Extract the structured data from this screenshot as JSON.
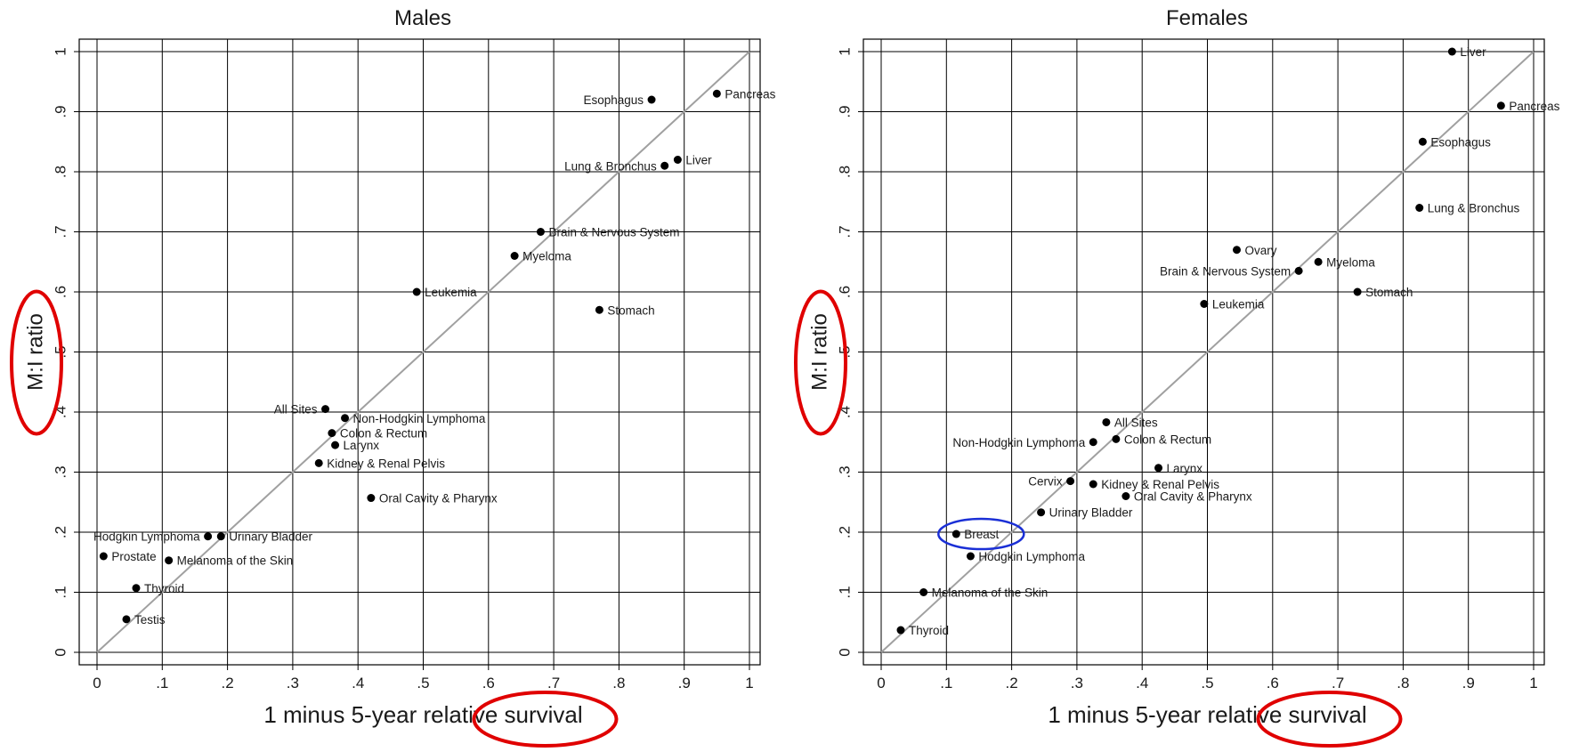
{
  "chart_data": [
    {
      "type": "scatter",
      "title": "Males",
      "xlabel": "1 minus 5-year relative survival",
      "ylabel": "M:I ratio",
      "xlim": [
        0,
        1
      ],
      "ylim": [
        0,
        1
      ],
      "grid": true,
      "reference_line": "y = x",
      "x_ticks": [
        {
          "value": 0,
          "label": "0"
        },
        {
          "value": 0.1,
          "label": ".1"
        },
        {
          "value": 0.2,
          "label": ".2"
        },
        {
          "value": 0.3,
          "label": ".3"
        },
        {
          "value": 0.4,
          "label": ".4"
        },
        {
          "value": 0.5,
          "label": ".5"
        },
        {
          "value": 0.6,
          "label": ".6"
        },
        {
          "value": 0.7,
          "label": ".7"
        },
        {
          "value": 0.8,
          "label": ".8"
        },
        {
          "value": 0.9,
          "label": ".9"
        },
        {
          "value": 1,
          "label": "1"
        }
      ],
      "y_ticks": [
        {
          "value": 0,
          "label": "0"
        },
        {
          "value": 0.1,
          "label": ".1"
        },
        {
          "value": 0.2,
          "label": ".2"
        },
        {
          "value": 0.3,
          "label": ".3"
        },
        {
          "value": 0.4,
          "label": ".4"
        },
        {
          "value": 0.5,
          "label": ".5"
        },
        {
          "value": 0.6,
          "label": ".6"
        },
        {
          "value": 0.7,
          "label": ".7"
        },
        {
          "value": 0.8,
          "label": ".8"
        },
        {
          "value": 0.9,
          "label": ".9"
        },
        {
          "value": 1,
          "label": "1"
        }
      ],
      "points": [
        {
          "label": "Esophagus",
          "x": 0.85,
          "y": 0.92,
          "label_side": "left"
        },
        {
          "label": "Pancreas",
          "x": 0.95,
          "y": 0.93,
          "label_side": "right"
        },
        {
          "label": "Lung & Bronchus",
          "x": 0.87,
          "y": 0.81,
          "label_side": "left"
        },
        {
          "label": "Liver",
          "x": 0.89,
          "y": 0.82,
          "label_side": "right"
        },
        {
          "label": "Brain & Nervous System",
          "x": 0.68,
          "y": 0.7,
          "label_side": "right"
        },
        {
          "label": "Myeloma",
          "x": 0.64,
          "y": 0.66,
          "label_side": "right"
        },
        {
          "label": "Leukemia",
          "x": 0.49,
          "y": 0.6,
          "label_side": "right"
        },
        {
          "label": "Stomach",
          "x": 0.77,
          "y": 0.57,
          "label_side": "right"
        },
        {
          "label": "All Sites",
          "x": 0.35,
          "y": 0.405,
          "label_side": "left"
        },
        {
          "label": "Non-Hodgkin Lymphoma",
          "x": 0.38,
          "y": 0.39,
          "label_side": "right"
        },
        {
          "label": "Colon & Rectum",
          "x": 0.36,
          "y": 0.365,
          "label_side": "right"
        },
        {
          "label": "Larynx",
          "x": 0.365,
          "y": 0.345,
          "label_side": "right"
        },
        {
          "label": "Kidney & Renal Pelvis",
          "x": 0.34,
          "y": 0.315,
          "label_side": "right"
        },
        {
          "label": "Oral Cavity & Pharynx",
          "x": 0.42,
          "y": 0.257,
          "label_side": "right"
        },
        {
          "label": "Hodgkin Lymphoma",
          "x": 0.17,
          "y": 0.193,
          "label_side": "left"
        },
        {
          "label": "Urinary Bladder",
          "x": 0.19,
          "y": 0.193,
          "label_side": "right"
        },
        {
          "label": "Prostate",
          "x": 0.01,
          "y": 0.16,
          "label_side": "right"
        },
        {
          "label": "Melanoma of the Skin",
          "x": 0.11,
          "y": 0.153,
          "label_side": "right"
        },
        {
          "label": "Thyroid",
          "x": 0.06,
          "y": 0.107,
          "label_side": "right"
        },
        {
          "label": "Testis",
          "x": 0.045,
          "y": 0.055,
          "label_side": "right"
        }
      ]
    },
    {
      "type": "scatter",
      "title": "Females",
      "xlabel": "1 minus 5-year relative survival",
      "ylabel": "M:I ratio",
      "xlim": [
        0,
        1
      ],
      "ylim": [
        0,
        1
      ],
      "grid": true,
      "reference_line": "y = x",
      "x_ticks": [
        {
          "value": 0,
          "label": "0"
        },
        {
          "value": 0.1,
          "label": ".1"
        },
        {
          "value": 0.2,
          "label": ".2"
        },
        {
          "value": 0.3,
          "label": ".3"
        },
        {
          "value": 0.4,
          "label": ".4"
        },
        {
          "value": 0.5,
          "label": ".5"
        },
        {
          "value": 0.6,
          "label": ".6"
        },
        {
          "value": 0.7,
          "label": ".7"
        },
        {
          "value": 0.8,
          "label": ".8"
        },
        {
          "value": 0.9,
          "label": ".9"
        },
        {
          "value": 1,
          "label": "1"
        }
      ],
      "y_ticks": [
        {
          "value": 0,
          "label": "0"
        },
        {
          "value": 0.1,
          "label": ".1"
        },
        {
          "value": 0.2,
          "label": ".2"
        },
        {
          "value": 0.3,
          "label": ".3"
        },
        {
          "value": 0.4,
          "label": ".4"
        },
        {
          "value": 0.5,
          "label": ".5"
        },
        {
          "value": 0.6,
          "label": ".6"
        },
        {
          "value": 0.7,
          "label": ".7"
        },
        {
          "value": 0.8,
          "label": ".8"
        },
        {
          "value": 0.9,
          "label": ".9"
        },
        {
          "value": 1,
          "label": "1"
        }
      ],
      "points": [
        {
          "label": "Liver",
          "x": 0.875,
          "y": 1.0,
          "label_side": "right"
        },
        {
          "label": "Pancreas",
          "x": 0.95,
          "y": 0.91,
          "label_side": "right"
        },
        {
          "label": "Esophagus",
          "x": 0.83,
          "y": 0.85,
          "label_side": "right"
        },
        {
          "label": "Lung & Bronchus",
          "x": 0.825,
          "y": 0.74,
          "label_side": "right"
        },
        {
          "label": "Ovary",
          "x": 0.545,
          "y": 0.67,
          "label_side": "right"
        },
        {
          "label": "Myeloma",
          "x": 0.67,
          "y": 0.65,
          "label_side": "right"
        },
        {
          "label": "Brain & Nervous System",
          "x": 0.64,
          "y": 0.635,
          "label_side": "left"
        },
        {
          "label": "Stomach",
          "x": 0.73,
          "y": 0.6,
          "label_side": "right"
        },
        {
          "label": "Leukemia",
          "x": 0.495,
          "y": 0.58,
          "label_side": "right"
        },
        {
          "label": "All Sites",
          "x": 0.345,
          "y": 0.383,
          "label_side": "right"
        },
        {
          "label": "Non-Hodgkin Lymphoma",
          "x": 0.325,
          "y": 0.35,
          "label_side": "left"
        },
        {
          "label": "Colon & Rectum",
          "x": 0.36,
          "y": 0.355,
          "label_side": "right"
        },
        {
          "label": "Larynx",
          "x": 0.425,
          "y": 0.307,
          "label_side": "right"
        },
        {
          "label": "Cervix",
          "x": 0.29,
          "y": 0.285,
          "label_side": "left"
        },
        {
          "label": "Kidney & Renal Pelvis",
          "x": 0.325,
          "y": 0.28,
          "label_side": "right"
        },
        {
          "label": "Oral Cavity & Pharynx",
          "x": 0.375,
          "y": 0.26,
          "label_side": "right"
        },
        {
          "label": "Urinary Bladder",
          "x": 0.245,
          "y": 0.233,
          "label_side": "right"
        },
        {
          "label": "Breast",
          "x": 0.115,
          "y": 0.197,
          "label_side": "right"
        },
        {
          "label": "Hodgkin Lymphoma",
          "x": 0.137,
          "y": 0.16,
          "label_side": "right"
        },
        {
          "label": "Melanoma of the Skin",
          "x": 0.065,
          "y": 0.1,
          "label_side": "right"
        },
        {
          "label": "Thyroid",
          "x": 0.03,
          "y": 0.037,
          "label_side": "right"
        }
      ]
    }
  ],
  "annotations": [
    {
      "chart": 0,
      "kind": "ellipse",
      "color": "#e00000",
      "marks": "y-axis-label"
    },
    {
      "chart": 0,
      "kind": "ellipse",
      "color": "#e00000",
      "marks": "x-axis-label-word-survival"
    },
    {
      "chart": 1,
      "kind": "ellipse",
      "color": "#e00000",
      "marks": "y-axis-label"
    },
    {
      "chart": 1,
      "kind": "ellipse",
      "color": "#e00000",
      "marks": "x-axis-label-word-survival"
    },
    {
      "chart": 1,
      "kind": "ellipse",
      "color": "#1a2fd6",
      "marks": "point-Breast"
    }
  ],
  "colors": {
    "point": "#000000",
    "grid": "#000000",
    "reference_line": "#a0a0a0",
    "text": "#1a1a1a"
  }
}
